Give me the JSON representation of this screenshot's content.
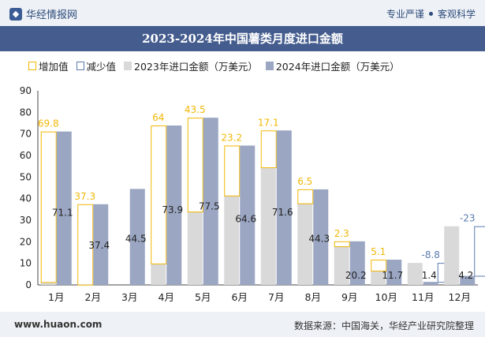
{
  "header": {
    "brand": "华经情报网",
    "slogan_left": "专业严谨",
    "slogan_right": "客观科学"
  },
  "footer": {
    "website": "www.huaon.com",
    "source": "数据来源：中国海关，华经产业研究院整理"
  },
  "colors": {
    "increase": "#f2b705",
    "decrease": "#5a7bb0",
    "bar2023": "#d9d9d9",
    "bar2024": "#9aa6c2",
    "title_bg": "#455d8e"
  },
  "chart_data": {
    "type": "bar",
    "title": "2023-2024年中国薯类月度进口金额",
    "categories": [
      "1月",
      "2月",
      "3月",
      "4月",
      "5月",
      "6月",
      "7月",
      "8月",
      "9月",
      "10月",
      "11月",
      "12月"
    ],
    "series": [
      {
        "name": "2023年进口金额（万美元）",
        "values": [
          1.3,
          0.1,
          0,
          9.9,
          34.0,
          41.4,
          54.5,
          37.8,
          17.9,
          6.6,
          10.2,
          27.2
        ]
      },
      {
        "name": "2024年进口金额（万美元）",
        "values": [
          71.1,
          37.4,
          44.5,
          73.9,
          77.5,
          64.6,
          71.6,
          44.3,
          20.2,
          11.7,
          1.4,
          4.2
        ]
      }
    ],
    "change": {
      "increase_name": "增加值",
      "decrease_name": "减少值",
      "values": [
        69.8,
        37.3,
        null,
        64,
        43.5,
        23.2,
        17.1,
        6.5,
        2.3,
        5.1,
        -8.8,
        -23
      ]
    },
    "ylim": [
      0,
      90
    ],
    "yticks": [
      0,
      10,
      20,
      30,
      40,
      50,
      60,
      70,
      80,
      90
    ],
    "grid": false,
    "legend_position": "top"
  }
}
